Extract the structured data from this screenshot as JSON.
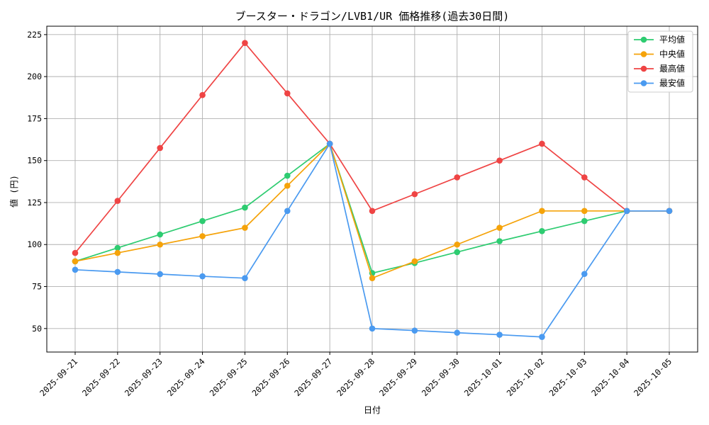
{
  "chart_data": {
    "type": "line",
    "title": "ブースター・ドラゴン/LVB1/UR 価格推移(過去30日間)",
    "xlabel": "日付",
    "ylabel": "値 (円)",
    "ylim": [
      36,
      230
    ],
    "yticks": [
      50,
      75,
      100,
      125,
      150,
      175,
      200,
      225
    ],
    "grid": true,
    "legend_position": "top-right",
    "categories": [
      "2025-09-21",
      "2025-09-22",
      "2025-09-23",
      "2025-09-24",
      "2025-09-25",
      "2025-09-26",
      "2025-09-27",
      "2025-09-28",
      "2025-09-29",
      "2025-09-30",
      "2025-10-01",
      "2025-10-02",
      "2025-10-03",
      "2025-10-04",
      "2025-10-05"
    ],
    "series": [
      {
        "name": "平均値",
        "color": "#2ecc71",
        "values": [
          90,
          98,
          106,
          114,
          122,
          141,
          160,
          83,
          89,
          95.5,
          102,
          108,
          114,
          120,
          120
        ]
      },
      {
        "name": "中央値",
        "color": "#f5a30a",
        "values": [
          90,
          95,
          100,
          105,
          110,
          135,
          160,
          80,
          90,
          100,
          110,
          120,
          120,
          120,
          120
        ]
      },
      {
        "name": "最高値",
        "color": "#ef4444",
        "values": [
          95,
          126,
          157.5,
          189,
          220,
          190,
          160,
          120,
          130,
          140,
          150,
          160,
          140,
          120,
          120
        ]
      },
      {
        "name": "最安値",
        "color": "#4a9af0",
        "values": [
          85,
          83.7,
          82.4,
          81.1,
          80,
          120,
          160,
          50,
          48.8,
          47.5,
          46.3,
          45,
          82.5,
          120,
          120
        ]
      }
    ]
  }
}
